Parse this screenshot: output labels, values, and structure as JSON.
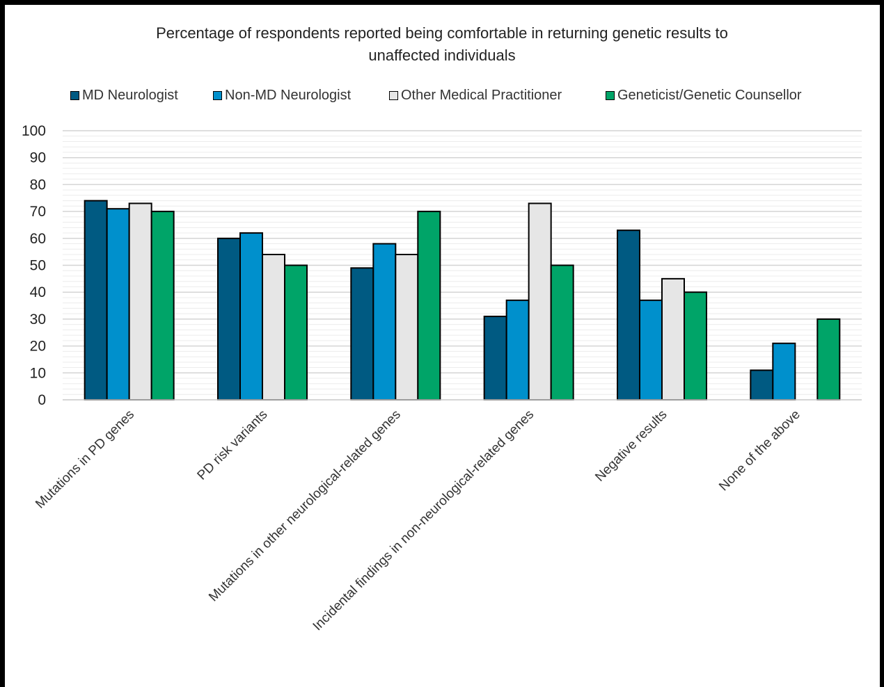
{
  "chart_data": {
    "type": "bar",
    "title": "Percentage of respondents reported being comfortable in returning genetic results to unaffected individuals",
    "title_lines": [
      "Percentage of respondents reported being comfortable in returning genetic results to",
      "unaffected individuals"
    ],
    "categories": [
      "Mutations in PD genes",
      "PD risk variants",
      "Mutations in other neurological-related genes",
      "Incidental findings in non-neurological-related genes",
      "Negative results",
      "None of the above"
    ],
    "series": [
      {
        "name": "MD Neurologist",
        "color": "#005a82",
        "values": [
          74,
          60,
          49,
          31,
          63,
          11
        ]
      },
      {
        "name": "Non-MD Neurologist",
        "color": "#0090cc",
        "values": [
          71,
          62,
          58,
          37,
          37,
          21
        ]
      },
      {
        "name": "Other Medical Practitioner",
        "color": "#e6e6e6",
        "values": [
          73,
          54,
          54,
          73,
          45,
          0
        ]
      },
      {
        "name": "Geneticist/Genetic Counsellor",
        "color": "#00a468",
        "values": [
          70,
          50,
          70,
          50,
          40,
          30
        ]
      }
    ],
    "ylim": [
      0,
      100
    ],
    "yticks": [
      0,
      10,
      20,
      30,
      40,
      50,
      60,
      70,
      80,
      90,
      100
    ],
    "xlabel": "",
    "ylabel": "",
    "legend_position": "top",
    "grid": true
  }
}
